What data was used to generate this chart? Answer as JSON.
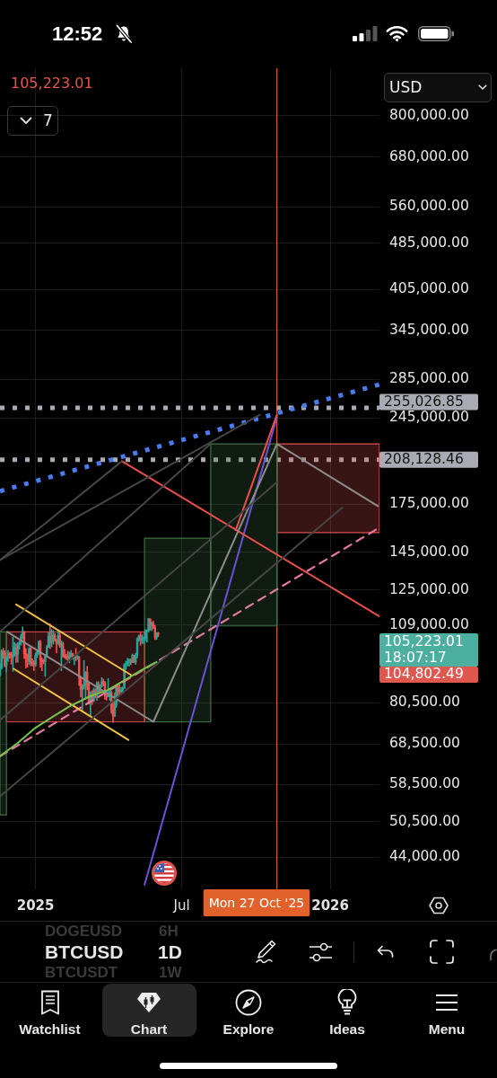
{
  "chart_data": {
    "type": "candlestick",
    "x": [
      "2024-11-18",
      "2024-11-20",
      "2024-11-22",
      "2024-11-24",
      "2024-11-26",
      "2024-11-28",
      "2024-11-30",
      "2024-12-02",
      "2024-12-04",
      "2024-12-06",
      "2024-12-08",
      "2024-12-10",
      "2024-12-12",
      "2024-12-14",
      "2024-12-16",
      "2024-12-18",
      "2024-12-20",
      "2024-12-22",
      "2024-12-24",
      "2024-12-26",
      "2024-12-28",
      "2024-12-30",
      "2025-01-01",
      "2025-01-03",
      "2025-01-05",
      "2025-01-07",
      "2025-01-09",
      "2025-01-11",
      "2025-01-13",
      "2025-01-15",
      "2025-01-17",
      "2025-01-19",
      "2025-01-21",
      "2025-01-23",
      "2025-01-25",
      "2025-01-27",
      "2025-01-29",
      "2025-01-31",
      "2025-02-02",
      "2025-02-04",
      "2025-02-06",
      "2025-02-08",
      "2025-02-10",
      "2025-02-12",
      "2025-02-14",
      "2025-02-16",
      "2025-02-18",
      "2025-02-20",
      "2025-02-22",
      "2025-02-24",
      "2025-02-26",
      "2025-02-28",
      "2025-03-02",
      "2025-03-04",
      "2025-03-06",
      "2025-03-08",
      "2025-03-10",
      "2025-03-12",
      "2025-03-14",
      "2025-03-16",
      "2025-03-18",
      "2025-03-20",
      "2025-03-22",
      "2025-03-24",
      "2025-03-26",
      "2025-03-28",
      "2025-03-30",
      "2025-04-01",
      "2025-04-03",
      "2025-04-05",
      "2025-04-07",
      "2025-04-09",
      "2025-04-11",
      "2025-04-13",
      "2025-04-15",
      "2025-04-17",
      "2025-04-19",
      "2025-04-21",
      "2025-04-23",
      "2025-04-25",
      "2025-04-27",
      "2025-04-29",
      "2025-05-01",
      "2025-05-03",
      "2025-05-05",
      "2025-05-07",
      "2025-05-09",
      "2025-05-11",
      "2025-05-13",
      "2025-05-15",
      "2025-05-17",
      "2025-05-19",
      "2025-05-21",
      "2025-05-23",
      "2025-05-25",
      "2025-05-27",
      "2025-05-29",
      "2025-05-31",
      "2025-06-02"
    ],
    "ohlc": [
      [
        89800,
        94000,
        89400,
        92300
      ],
      [
        92300,
        99000,
        91800,
        98300
      ],
      [
        98300,
        99600,
        95700,
        97700
      ],
      [
        97700,
        98700,
        92600,
        93000
      ],
      [
        93000,
        96400,
        90800,
        95900
      ],
      [
        95900,
        98700,
        94600,
        97500
      ],
      [
        97500,
        98000,
        95700,
        97200
      ],
      [
        97200,
        98100,
        93600,
        96000
      ],
      [
        96000,
        104000,
        91000,
        97000
      ],
      [
        97000,
        101900,
        96600,
        99900
      ],
      [
        99900,
        101400,
        94200,
        97400
      ],
      [
        97400,
        101900,
        94300,
        101200
      ],
      [
        101200,
        102500,
        99200,
        101400
      ],
      [
        101400,
        105200,
        100800,
        104300
      ],
      [
        104300,
        108300,
        103300,
        106100
      ],
      [
        106100,
        106500,
        95600,
        97500
      ],
      [
        97500,
        99500,
        92200,
        97200
      ],
      [
        97200,
        97400,
        92500,
        94700
      ],
      [
        94700,
        99900,
        93400,
        99400
      ],
      [
        99400,
        99900,
        93000,
        94200
      ],
      [
        94200,
        95600,
        92900,
        93700
      ],
      [
        93700,
        94900,
        91300,
        93400
      ],
      [
        93400,
        97800,
        92800,
        96900
      ],
      [
        96900,
        98900,
        96000,
        98200
      ],
      [
        98200,
        102500,
        97300,
        102100
      ],
      [
        102100,
        102700,
        92500,
        95000
      ],
      [
        95000,
        95900,
        91200,
        94700
      ],
      [
        94700,
        95400,
        93700,
        94500
      ],
      [
        94500,
        97300,
        89200,
        96500
      ],
      [
        96500,
        100700,
        96500,
        99900
      ],
      [
        99900,
        105900,
        99900,
        104400
      ],
      [
        104400,
        109600,
        99500,
        102000
      ],
      [
        102000,
        107200,
        100100,
        103600
      ],
      [
        103600,
        106800,
        101200,
        104800
      ],
      [
        104800,
        105500,
        102300,
        102600
      ],
      [
        102600,
        103200,
        97800,
        101300
      ],
      [
        101300,
        106400,
        101200,
        104700
      ],
      [
        104700,
        106000,
        99900,
        100600
      ],
      [
        100600,
        102500,
        91200,
        101400
      ],
      [
        101400,
        102000,
        96200,
        96600
      ],
      [
        96600,
        99200,
        95700,
        96500
      ],
      [
        96500,
        97300,
        95300,
        96100
      ],
      [
        96100,
        98500,
        94900,
        95800
      ],
      [
        95800,
        98100,
        94100,
        96600
      ],
      [
        96600,
        98800,
        96300,
        97600
      ],
      [
        97600,
        97700,
        95400,
        95800
      ],
      [
        95800,
        96900,
        93400,
        96600
      ],
      [
        96600,
        99500,
        94900,
        96100
      ],
      [
        96100,
        96900,
        95300,
        96300
      ],
      [
        96300,
        96500,
        86100,
        88700
      ],
      [
        88700,
        89300,
        82300,
        84700
      ],
      [
        84700,
        86500,
        78200,
        86000
      ],
      [
        86000,
        95000,
        85000,
        86100
      ],
      [
        86100,
        91000,
        81500,
        90600
      ],
      [
        90600,
        92800,
        84700,
        86700
      ],
      [
        86700,
        86800,
        80000,
        80700
      ],
      [
        80700,
        84000,
        76600,
        82900
      ],
      [
        82900,
        84400,
        79900,
        81100
      ],
      [
        81100,
        85300,
        80800,
        84300
      ],
      [
        84300,
        85000,
        82000,
        84000
      ],
      [
        84000,
        87400,
        81200,
        86800
      ],
      [
        86800,
        87400,
        83200,
        84000
      ],
      [
        84000,
        86300,
        83700,
        86100
      ],
      [
        86100,
        88800,
        85500,
        87400
      ],
      [
        87400,
        88300,
        85900,
        87200
      ],
      [
        87200,
        87500,
        81600,
        82600
      ],
      [
        82600,
        83900,
        81300,
        82500
      ],
      [
        82500,
        88500,
        82400,
        82500
      ],
      [
        82500,
        84700,
        81200,
        83800
      ],
      [
        83800,
        84200,
        77200,
        78200
      ],
      [
        78200,
        81200,
        74500,
        76300
      ],
      [
        76300,
        83600,
        76200,
        79600
      ],
      [
        79600,
        85900,
        79000,
        85300
      ],
      [
        85300,
        86000,
        82700,
        84500
      ],
      [
        84500,
        86400,
        83100,
        84000
      ],
      [
        84000,
        85500,
        83700,
        84500
      ],
      [
        84500,
        85600,
        83900,
        85200
      ],
      [
        85200,
        93800,
        85100,
        93400
      ],
      [
        93400,
        94700,
        91700,
        93900
      ],
      [
        93900,
        95800,
        92900,
        94600
      ],
      [
        94600,
        95600,
        92900,
        95000
      ],
      [
        95000,
        95500,
        93400,
        94200
      ],
      [
        94200,
        97400,
        94100,
        96900
      ],
      [
        96900,
        96900,
        94200,
        94300
      ],
      [
        94300,
        97700,
        93500,
        96800
      ],
      [
        96800,
        103800,
        95900,
        103200
      ],
      [
        103200,
        104900,
        102400,
        104600
      ],
      [
        104600,
        105800,
        100800,
        102800
      ],
      [
        102800,
        105000,
        101400,
        103500
      ],
      [
        103500,
        104200,
        101500,
        103500
      ],
      [
        103500,
        107100,
        102600,
        106500
      ],
      [
        106500,
        107100,
        102000,
        106800
      ],
      [
        106800,
        112000,
        106100,
        111700
      ],
      [
        111700,
        111800,
        106800,
        108900
      ],
      [
        108900,
        110400,
        106700,
        109400
      ],
      [
        109400,
        110700,
        107500,
        107800
      ],
      [
        107800,
        108900,
        103000,
        103900
      ],
      [
        103900,
        105900,
        103100,
        105700
      ],
      [
        105700,
        106000,
        104200,
        105200
      ]
    ],
    "colors": [
      "#26a69a",
      "#26a69a",
      "#ef5350",
      "#ef5350",
      "#26a69a",
      "#26a69a",
      "#ef5350",
      "#ef5350",
      "#26a69a",
      "#26a69a",
      "#ef5350",
      "#26a69a",
      "#26a69a",
      "#26a69a",
      "#26a69a",
      "#ef5350",
      "#ef5350",
      "#ef5350",
      "#26a69a",
      "#ef5350",
      "#ef5350",
      "#ef5350",
      "#26a69a",
      "#26a69a",
      "#26a69a",
      "#ef5350",
      "#ef5350",
      "#ef5350",
      "#26a69a",
      "#26a69a",
      "#26a69a",
      "#ef5350",
      "#26a69a",
      "#26a69a",
      "#ef5350",
      "#ef5350",
      "#26a69a",
      "#ef5350",
      "#26a69a",
      "#ef5350",
      "#ef5350",
      "#ef5350",
      "#ef5350",
      "#26a69a",
      "#26a69a",
      "#ef5350",
      "#26a69a",
      "#ef5350",
      "#26a69a",
      "#ef5350",
      "#ef5350",
      "#26a69a",
      "#26a69a",
      "#26a69a",
      "#ef5350",
      "#ef5350",
      "#26a69a",
      "#ef5350",
      "#26a69a",
      "#ef5350",
      "#26a69a",
      "#ef5350",
      "#26a69a",
      "#26a69a",
      "#ef5350",
      "#ef5350",
      "#ef5350",
      "#26a69a",
      "#26a69a",
      "#ef5350",
      "#ef5350",
      "#26a69a",
      "#26a69a",
      "#ef5350",
      "#ef5350",
      "#26a69a",
      "#26a69a",
      "#26a69a",
      "#26a69a",
      "#26a69a",
      "#26a69a",
      "#ef5350",
      "#26a69a",
      "#ef5350",
      "#26a69a",
      "#26a69a",
      "#26a69a",
      "#ef5350",
      "#26a69a",
      "#26a69a",
      "#26a69a",
      "#26a69a",
      "#26a69a",
      "#ef5350",
      "#26a69a",
      "#ef5350",
      "#ef5350",
      "#26a69a",
      "#ef5350"
    ],
    "series": [
      {
        "type": "area",
        "color": "#3f7045",
        "x": [
          "2024-11-18",
          "2024-11-18",
          "2024-11-26",
          "2024-11-26",
          "2024-11-18"
        ],
        "values": [
          51900,
          106200,
          106200,
          51900,
          51900
        ]
      },
      {
        "type": "area",
        "color": "#c84646",
        "x": [
          "2024-11-26",
          "2024-11-26",
          "2025-05-16",
          "2025-05-16",
          "2024-11-26"
        ],
        "values": [
          74700,
          106200,
          106200,
          74700,
          74700
        ]
      },
      {
        "type": "area",
        "color": "#3f7045",
        "x": [
          "2025-05-16",
          "2025-05-16",
          "2025-08-06",
          "2025-08-06",
          "2025-05-16"
        ],
        "values": [
          74700,
          153200,
          153200,
          74700,
          74700
        ]
      },
      {
        "type": "area",
        "color": "#3f7045",
        "x": [
          "2025-08-06",
          "2025-08-06",
          "2025-10-27",
          "2025-10-27",
          "2025-08-06"
        ],
        "values": [
          108700,
          221500,
          221500,
          108700,
          108700
        ]
      },
      {
        "type": "area",
        "color": "#e05252",
        "x": [
          "2025-10-27",
          "2025-10-27",
          "2026-03-03",
          "2026-03-03",
          "2025-10-27"
        ],
        "values": [
          156600,
          221500,
          221500,
          156600,
          156600
        ]
      },
      {
        "type": "line",
        "color": "#464646",
        "x": [
          "2024-11-18",
          "2025-04-18"
        ],
        "values": [
          140600,
          207000
        ]
      },
      {
        "type": "line",
        "color": "#464646",
        "x": [
          "2024-11-18",
          "2025-10-06"
        ],
        "values": [
          140600,
          248200
        ]
      },
      {
        "type": "line",
        "color": "#464646",
        "x": [
          "2024-11-18",
          "2025-08-06"
        ],
        "values": [
          106200,
          221500
        ]
      },
      {
        "type": "line",
        "color": "#464646",
        "x": [
          "2024-11-18",
          "2025-10-27"
        ],
        "values": [
          75200,
          190600
        ]
      },
      {
        "type": "line",
        "color": "#464646",
        "x": [
          "2024-11-18",
          "2026-01-16"
        ],
        "values": [
          55800,
          172600
        ]
      },
      {
        "type": "line",
        "color": "#74c44c",
        "x": [
          "2024-11-18",
          "2024-12-10",
          "2025-01-01",
          "2025-01-21",
          "2025-02-11",
          "2025-03-09",
          "2025-03-31",
          "2025-04-22",
          "2025-05-11",
          "2025-05-31"
        ],
        "values": [
          65300,
          68800,
          73000,
          76000,
          79200,
          82500,
          84500,
          88000,
          91200,
          94400
        ]
      },
      {
        "type": "line",
        "color": "#8c8c8c",
        "x": [
          "2024-11-27",
          "2025-05-27",
          "2025-10-27",
          "2026-03-01"
        ],
        "values": [
          106200,
          74700,
          221500,
          173600
        ]
      },
      {
        "type": "line",
        "color": "#f0c040",
        "x": [
          "2024-12-08",
          "2025-04-30"
        ],
        "values": [
          118200,
          89600
        ]
      },
      {
        "type": "line",
        "color": "#f0c040",
        "x": [
          "2024-12-05",
          "2025-04-26"
        ],
        "values": [
          91900,
          69600
        ]
      },
      {
        "type": "line",
        "color": "#e57aa0",
        "line_style": "dashed",
        "x": [
          "2024-11-18",
          "2026-03-03"
        ],
        "values": [
          65300,
          159700
        ]
      },
      {
        "type": "line",
        "color": "#ee4e4e",
        "x": [
          "2025-04-18",
          "2026-03-03"
        ],
        "values": [
          207000,
          112800
        ]
      },
      {
        "type": "line",
        "color": "#ee4e4e",
        "x": [
          "2025-09-06",
          "2025-10-27"
        ],
        "values": [
          158100,
          248200
        ]
      },
      {
        "type": "line",
        "color": "#6b52d8",
        "x": [
          "2025-05-16",
          "2025-10-27"
        ],
        "values": [
          39500,
          246000
        ]
      },
      {
        "type": "line",
        "color": "#4a7cf0",
        "line_style": "dotted",
        "x": [
          "2024-11-18",
          "2026-03-03"
        ],
        "values": [
          184100,
          279400
        ]
      }
    ],
    "xlim": [
      "2024-11-18",
      "2026-03-03"
    ],
    "xticks": [
      {
        "value": "2025-01-01",
        "label": "2025"
      },
      {
        "value": "2025-07-01",
        "label": "Jul"
      },
      {
        "value": "2026-01-01",
        "label": "2026"
      }
    ],
    "ylim": [
      38800,
      962000
    ],
    "yticks": [
      {
        "value": 44000,
        "label": "44,000.00"
      },
      {
        "value": 50500,
        "label": "50,500.00"
      },
      {
        "value": 58500,
        "label": "58,500.00"
      },
      {
        "value": 68500,
        "label": "68,500.00"
      },
      {
        "value": 80500,
        "label": "80,500.00"
      },
      {
        "value": 109000,
        "label": "109,000.00"
      },
      {
        "value": 125000,
        "label": "125,000.00"
      },
      {
        "value": 145000,
        "label": "145,000.00"
      },
      {
        "value": 175000,
        "label": "175,000.00"
      },
      {
        "value": 245000,
        "label": "245,000.00"
      },
      {
        "value": 285000,
        "label": "285,000.00"
      },
      {
        "value": 345000,
        "label": "345,000.00"
      },
      {
        "value": 405000,
        "label": "405,000.00"
      },
      {
        "value": 485000,
        "label": "485,000.00"
      },
      {
        "value": 560000,
        "label": "560,000.00"
      },
      {
        "value": 680000,
        "label": "680,000.00"
      },
      {
        "value": 800000,
        "label": "800,000.00"
      }
    ],
    "log": true,
    "grid": true,
    "ref_lines": [
      {
        "axis": "y",
        "value": 255026.85,
        "label": "255,026.85",
        "color": "#a8abb3",
        "line_style": "dotted"
      },
      {
        "axis": "y",
        "value": 208128.46,
        "label": "208,128.46",
        "color": "#a8abb3",
        "line_style": "dotted"
      },
      {
        "axis": "x",
        "value": "2025-10-27",
        "label": "Mon 27 Oct '25",
        "color": "#e0612a"
      }
    ],
    "annotations": [
      "12:52",
      "105,223.01",
      "7",
      "USD",
      "105,223.01",
      "18:07:17",
      "104,802.49",
      "BTCUSD",
      "1D",
      "DOGEUSD",
      "6H",
      "BTCUSDT",
      "1W",
      "Watchlist",
      "Chart",
      "Explore",
      "Ideas",
      "Menu"
    ]
  }
}
